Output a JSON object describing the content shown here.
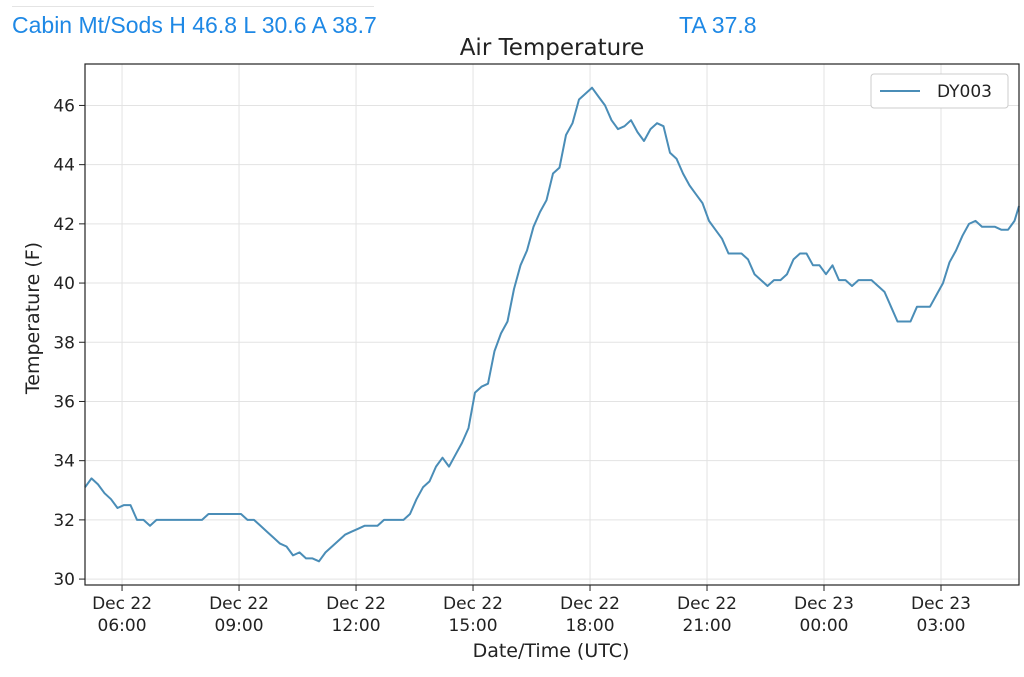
{
  "header": {
    "station_stats": "Cabin Mt/Sods H 46.8 L 30.6 A 38.7",
    "ta_readout": "TA 37.8"
  },
  "chart_data": {
    "type": "line",
    "title": "Air Temperature",
    "xlabel": "Date/Time (UTC)",
    "ylabel": "Temperature (F)",
    "ylim": [
      29.8,
      47.4
    ],
    "yticks": [
      30,
      32,
      34,
      36,
      38,
      40,
      42,
      44,
      46
    ],
    "xlim": [
      "2022-12-22T05:03",
      "2022-12-23T05:00"
    ],
    "xticks": [
      {
        "t": "2022-12-22T06:00",
        "line1": "Dec 22",
        "line2": "06:00"
      },
      {
        "t": "2022-12-22T09:00",
        "line1": "Dec 22",
        "line2": "09:00"
      },
      {
        "t": "2022-12-22T12:00",
        "line1": "Dec 22",
        "line2": "12:00"
      },
      {
        "t": "2022-12-22T15:00",
        "line1": "Dec 22",
        "line2": "15:00"
      },
      {
        "t": "2022-12-22T18:00",
        "line1": "Dec 22",
        "line2": "18:00"
      },
      {
        "t": "2022-12-22T21:00",
        "line1": "Dec 22",
        "line2": "21:00"
      },
      {
        "t": "2022-12-23T00:00",
        "line1": "Dec 23",
        "line2": "00:00"
      },
      {
        "t": "2022-12-23T03:00",
        "line1": "Dec 23",
        "line2": "03:00"
      }
    ],
    "grid": true,
    "legend_position": "top-right",
    "series": [
      {
        "name": "DY003",
        "color": "#4a8db7",
        "x": [
          "2022-12-22T05:03",
          "2022-12-22T05:13",
          "2022-12-22T05:23",
          "2022-12-22T05:33",
          "2022-12-22T05:43",
          "2022-12-22T05:53",
          "2022-12-22T06:03",
          "2022-12-22T06:13",
          "2022-12-22T06:23",
          "2022-12-22T06:33",
          "2022-12-22T06:43",
          "2022-12-22T06:53",
          "2022-12-22T07:03",
          "2022-12-22T07:13",
          "2022-12-22T07:23",
          "2022-12-22T07:33",
          "2022-12-22T07:43",
          "2022-12-22T07:53",
          "2022-12-22T08:03",
          "2022-12-22T08:13",
          "2022-12-22T08:23",
          "2022-12-22T08:33",
          "2022-12-22T08:43",
          "2022-12-22T08:53",
          "2022-12-22T09:03",
          "2022-12-22T09:13",
          "2022-12-22T09:23",
          "2022-12-22T09:33",
          "2022-12-22T09:43",
          "2022-12-22T09:53",
          "2022-12-22T10:03",
          "2022-12-22T10:13",
          "2022-12-22T10:23",
          "2022-12-22T10:33",
          "2022-12-22T10:43",
          "2022-12-22T10:53",
          "2022-12-22T11:03",
          "2022-12-22T11:13",
          "2022-12-22T11:23",
          "2022-12-22T11:33",
          "2022-12-22T11:43",
          "2022-12-22T11:53",
          "2022-12-22T12:03",
          "2022-12-22T12:13",
          "2022-12-22T12:23",
          "2022-12-22T12:33",
          "2022-12-22T12:43",
          "2022-12-22T12:53",
          "2022-12-22T13:03",
          "2022-12-22T13:13",
          "2022-12-22T13:23",
          "2022-12-22T13:33",
          "2022-12-22T13:43",
          "2022-12-22T13:53",
          "2022-12-22T14:03",
          "2022-12-22T14:13",
          "2022-12-22T14:23",
          "2022-12-22T14:33",
          "2022-12-22T14:43",
          "2022-12-22T14:53",
          "2022-12-22T15:03",
          "2022-12-22T15:13",
          "2022-12-22T15:23",
          "2022-12-22T15:33",
          "2022-12-22T15:43",
          "2022-12-22T15:53",
          "2022-12-22T16:03",
          "2022-12-22T16:13",
          "2022-12-22T16:23",
          "2022-12-22T16:33",
          "2022-12-22T16:43",
          "2022-12-22T16:53",
          "2022-12-22T17:03",
          "2022-12-22T17:13",
          "2022-12-22T17:23",
          "2022-12-22T17:33",
          "2022-12-22T17:43",
          "2022-12-22T17:53",
          "2022-12-22T18:03",
          "2022-12-22T18:13",
          "2022-12-22T18:23",
          "2022-12-22T18:33",
          "2022-12-22T18:43",
          "2022-12-22T18:53",
          "2022-12-22T19:03",
          "2022-12-22T19:13",
          "2022-12-22T19:23",
          "2022-12-22T19:33",
          "2022-12-22T19:43",
          "2022-12-22T19:53",
          "2022-12-22T20:03",
          "2022-12-22T20:13",
          "2022-12-22T20:23",
          "2022-12-22T20:33",
          "2022-12-22T20:43",
          "2022-12-22T20:53",
          "2022-12-22T21:03",
          "2022-12-22T21:13",
          "2022-12-22T21:23",
          "2022-12-22T21:33",
          "2022-12-22T21:43",
          "2022-12-22T21:53",
          "2022-12-22T22:03",
          "2022-12-22T22:13",
          "2022-12-22T22:23",
          "2022-12-22T22:33",
          "2022-12-22T22:43",
          "2022-12-22T22:53",
          "2022-12-22T23:03",
          "2022-12-22T23:13",
          "2022-12-22T23:23",
          "2022-12-22T23:33",
          "2022-12-22T23:43",
          "2022-12-22T23:53",
          "2022-12-23T00:03",
          "2022-12-23T00:13",
          "2022-12-23T00:23",
          "2022-12-23T00:33",
          "2022-12-23T00:43",
          "2022-12-23T00:53",
          "2022-12-23T01:03",
          "2022-12-23T01:13",
          "2022-12-23T01:23",
          "2022-12-23T01:33",
          "2022-12-23T01:43",
          "2022-12-23T01:53",
          "2022-12-23T02:03",
          "2022-12-23T02:13",
          "2022-12-23T02:23",
          "2022-12-23T02:33",
          "2022-12-23T02:43",
          "2022-12-23T02:53",
          "2022-12-23T03:03",
          "2022-12-23T03:13",
          "2022-12-23T03:23",
          "2022-12-23T03:33",
          "2022-12-23T03:43",
          "2022-12-23T03:53",
          "2022-12-23T04:03",
          "2022-12-23T04:13",
          "2022-12-23T04:23",
          "2022-12-23T04:33",
          "2022-12-23T04:43",
          "2022-12-23T04:53",
          "2022-12-23T05:00"
        ],
        "y": [
          33.1,
          33.4,
          33.2,
          32.9,
          32.7,
          32.4,
          32.5,
          32.5,
          32.0,
          32.0,
          31.8,
          32.0,
          32.0,
          32.0,
          32.0,
          32.0,
          32.0,
          32.0,
          32.0,
          32.2,
          32.2,
          32.2,
          32.2,
          32.2,
          32.2,
          32.0,
          32.0,
          31.8,
          31.6,
          31.4,
          31.2,
          31.1,
          30.8,
          30.9,
          30.7,
          30.7,
          30.6,
          30.9,
          31.1,
          31.3,
          31.5,
          31.6,
          31.7,
          31.8,
          31.8,
          31.8,
          32.0,
          32.0,
          32.0,
          32.0,
          32.2,
          32.7,
          33.1,
          33.3,
          33.8,
          34.1,
          33.8,
          34.2,
          34.6,
          35.1,
          36.3,
          36.5,
          36.6,
          37.7,
          38.3,
          38.7,
          39.8,
          40.6,
          41.1,
          41.9,
          42.4,
          42.8,
          43.7,
          43.9,
          45.0,
          45.4,
          46.2,
          46.4,
          46.6,
          46.3,
          46.0,
          45.5,
          45.2,
          45.3,
          45.5,
          45.1,
          44.8,
          45.2,
          45.4,
          45.3,
          44.4,
          44.2,
          43.7,
          43.3,
          43.0,
          42.7,
          42.1,
          41.8,
          41.5,
          41.0,
          41.0,
          41.0,
          40.8,
          40.3,
          40.1,
          39.9,
          40.1,
          40.1,
          40.3,
          40.8,
          41.0,
          41.0,
          40.6,
          40.6,
          40.3,
          40.6,
          40.1,
          40.1,
          39.9,
          40.1,
          40.1,
          40.1,
          39.9,
          39.7,
          39.2,
          38.7,
          38.7,
          38.7,
          39.2,
          39.2,
          39.2,
          39.6,
          40.0,
          40.7,
          41.1,
          41.6,
          42.0,
          42.1,
          41.9,
          41.9,
          41.9,
          41.8,
          41.8,
          42.1,
          42.6
        ]
      }
    ]
  }
}
